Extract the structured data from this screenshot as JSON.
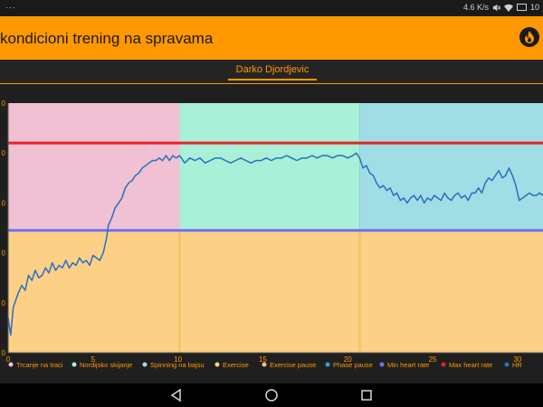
{
  "status_bar": {
    "left_text": "···",
    "speed": "4.6 K/s",
    "battery": "10",
    "icons": [
      "mute-icon",
      "wifi-icon",
      "battery-icon"
    ]
  },
  "app_bar": {
    "title": "kondicioni trening na spravama",
    "icon": "flame-icon",
    "color": "#ff9800"
  },
  "tab": {
    "label": "Darko Djordjevic"
  },
  "chart_data": {
    "type": "line",
    "x_ticks": [
      0,
      5,
      10,
      15,
      20,
      25,
      30
    ],
    "y_ticks": [
      "0",
      "0",
      "0",
      "0",
      "0",
      "0"
    ],
    "xlim": [
      0,
      31.5
    ],
    "ylim": [
      0,
      5
    ],
    "phases": [
      {
        "name": "Trcanje na traci",
        "start": 0,
        "end": 10.1,
        "color": "#efc1d3"
      },
      {
        "name": "Nordijsko skijanje",
        "start": 10.1,
        "end": 20.7,
        "color": "#a8f0d7"
      },
      {
        "name": "Spinning na bajsu",
        "start": 20.7,
        "end": 31.5,
        "color": "#a1dde5"
      }
    ],
    "exercise_color": "#fdd088",
    "exercise_pause_color": "#f5c56e",
    "exercise_pause_at": [
      10.1,
      20.7
    ],
    "max_heart_rate": 4.2,
    "min_heart_rate": 2.45,
    "max_line_color": "#e82222",
    "min_line_color": "#6f72f0",
    "hr_color": "#2a6fc0",
    "hr": {
      "x": [
        0,
        0.15,
        0.3,
        0.45,
        0.6,
        0.8,
        1.0,
        1.2,
        1.4,
        1.6,
        1.8,
        2.0,
        2.2,
        2.4,
        2.6,
        2.8,
        3.0,
        3.2,
        3.4,
        3.6,
        3.8,
        4.0,
        4.2,
        4.4,
        4.6,
        4.8,
        5.0,
        5.2,
        5.4,
        5.6,
        5.8,
        5.9,
        6.1,
        6.3,
        6.5,
        6.7,
        6.9,
        7.1,
        7.3,
        7.5,
        7.7,
        7.9,
        8.1,
        8.3,
        8.5,
        8.7,
        8.9,
        9.1,
        9.3,
        9.5,
        9.7,
        9.9,
        10.1,
        10.4,
        10.7,
        11.0,
        11.3,
        11.6,
        11.9,
        12.2,
        12.5,
        12.8,
        13.1,
        13.4,
        13.7,
        14.0,
        14.3,
        14.6,
        14.9,
        15.2,
        15.5,
        15.8,
        16.1,
        16.4,
        16.7,
        17.0,
        17.3,
        17.6,
        17.9,
        18.2,
        18.5,
        18.8,
        19.1,
        19.4,
        19.7,
        20.0,
        20.3,
        20.5,
        20.7,
        20.9,
        21.1,
        21.3,
        21.5,
        21.7,
        21.9,
        22.1,
        22.3,
        22.5,
        22.7,
        22.9,
        23.1,
        23.3,
        23.5,
        23.7,
        23.9,
        24.1,
        24.3,
        24.5,
        24.7,
        24.9,
        25.1,
        25.3,
        25.5,
        25.7,
        25.9,
        26.1,
        26.3,
        26.5,
        26.7,
        26.9,
        27.1,
        27.3,
        27.5,
        27.7,
        27.9,
        28.1,
        28.3,
        28.5,
        28.7,
        28.9,
        29.1,
        29.3,
        29.5,
        29.7,
        29.9,
        30.1,
        30.3,
        30.5,
        30.7,
        30.9,
        31.1,
        31.3,
        31.5
      ],
      "y": [
        0.7,
        0.35,
        0.9,
        1.05,
        1.2,
        1.35,
        1.25,
        1.55,
        1.45,
        1.65,
        1.5,
        1.55,
        1.7,
        1.6,
        1.8,
        1.65,
        1.75,
        1.7,
        1.85,
        1.7,
        1.8,
        1.75,
        1.9,
        1.8,
        1.85,
        1.75,
        1.95,
        1.9,
        1.85,
        2.0,
        2.3,
        2.55,
        2.7,
        2.9,
        3.0,
        3.1,
        3.3,
        3.4,
        3.45,
        3.55,
        3.6,
        3.7,
        3.75,
        3.8,
        3.85,
        3.85,
        3.9,
        3.85,
        3.95,
        3.85,
        3.95,
        3.9,
        3.95,
        3.8,
        3.9,
        3.85,
        3.9,
        3.8,
        3.85,
        3.9,
        3.9,
        3.85,
        3.8,
        3.85,
        3.9,
        3.85,
        3.8,
        3.85,
        3.85,
        3.9,
        3.85,
        3.9,
        3.9,
        3.95,
        3.9,
        3.85,
        3.9,
        3.9,
        3.95,
        3.9,
        3.95,
        3.95,
        3.9,
        3.95,
        3.95,
        3.9,
        3.95,
        4.0,
        3.9,
        3.7,
        3.75,
        3.6,
        3.55,
        3.4,
        3.3,
        3.35,
        3.25,
        3.3,
        3.15,
        3.2,
        3.05,
        3.1,
        3.0,
        3.1,
        3.15,
        3.05,
        3.15,
        3.0,
        3.1,
        3.05,
        3.15,
        3.1,
        3.05,
        3.2,
        3.1,
        3.05,
        3.15,
        3.2,
        3.1,
        3.15,
        3.05,
        3.2,
        3.2,
        3.3,
        3.2,
        3.4,
        3.5,
        3.45,
        3.55,
        3.65,
        3.5,
        3.55,
        3.7,
        3.55,
        3.35,
        3.05,
        3.1,
        3.15,
        3.2,
        3.15,
        3.15,
        3.2,
        3.15
      ]
    },
    "legend": [
      {
        "label": "Trcanje na traci",
        "color": "#efc1d3"
      },
      {
        "label": "Nordijsko skijanje",
        "color": "#a8f0d7"
      },
      {
        "label": "Spinning na bajsu",
        "color": "#a1dde5"
      },
      {
        "label": "Exercise",
        "color": "#fdd088"
      },
      {
        "label": "Exercise pause",
        "color": "#f5c56e"
      },
      {
        "label": "Phase pause",
        "color": "#29a3d6"
      },
      {
        "label": "Min heart rate",
        "color": "#6f72f0"
      },
      {
        "label": "Max heart rate",
        "color": "#e82222"
      },
      {
        "label": "HR",
        "color": "#2a6fc0"
      }
    ]
  },
  "nav_bar": {
    "buttons": [
      "back-icon",
      "home-icon",
      "recents-icon"
    ]
  }
}
